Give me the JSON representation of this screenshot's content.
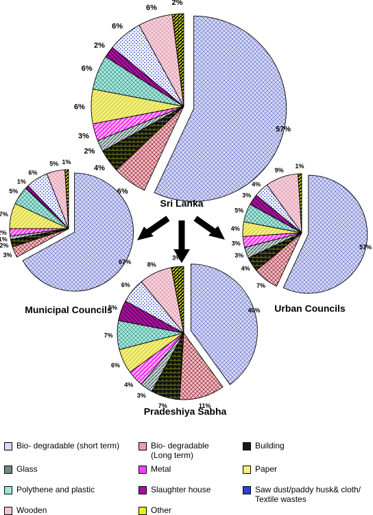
{
  "chart_data": [
    {
      "type": "pie",
      "title": "Sri Lanka",
      "categories": [
        "Bio- degradable (short term)",
        "Bio- degradable (Long term)",
        "Building",
        "Glass",
        "Metal",
        "Paper",
        "Polythene and plastic",
        "Slaughter house",
        "Saw dust/paddy husk& cloth/ Textile wastes",
        "Wooden",
        "Other"
      ],
      "values": [
        57,
        6,
        4,
        2,
        3,
        6,
        6,
        2,
        6,
        6,
        2
      ],
      "labels": [
        "57%",
        "6%",
        "4%",
        "2%",
        "3%",
        "6%",
        "6%",
        "2%",
        "6%",
        "6%",
        "2%"
      ]
    },
    {
      "type": "pie",
      "title": "Municipal Councils",
      "categories": [
        "Bio- degradable (short term)",
        "Bio- degradable (Long term)",
        "Building",
        "Glass",
        "Metal",
        "Paper",
        "Polythene and plastic",
        "Slaughter house",
        "Saw dust/paddy husk& cloth/ Textile wastes",
        "Wooden",
        "Other"
      ],
      "values": [
        67,
        3,
        2,
        1,
        2,
        7,
        5,
        1,
        6,
        5,
        1
      ],
      "labels": [
        "67%",
        "3%",
        "2%",
        "1%",
        "2%",
        "7%",
        "5%",
        "1%",
        "6%",
        "5%",
        "1%"
      ]
    },
    {
      "type": "pie",
      "title": "Urban Councils",
      "categories": [
        "Bio- degradable (short term)",
        "Bio- degradable (Long term)",
        "Building",
        "Glass",
        "Metal",
        "Paper",
        "Polythene and plastic",
        "Slaughter house",
        "Saw dust/paddy husk& cloth/ Textile wastes",
        "Wooden",
        "Other"
      ],
      "values": [
        57,
        7,
        4,
        3,
        3,
        4,
        5,
        3,
        4,
        9,
        1
      ],
      "labels": [
        "57%",
        "7%",
        "4%",
        "3%",
        "3%",
        "4%",
        "5%",
        "3%",
        "4%",
        "9%",
        "1%"
      ]
    },
    {
      "type": "pie",
      "title": "Pradeshiya Sabha",
      "categories": [
        "Bio- degradable (short term)",
        "Bio- degradable (Long term)",
        "Building",
        "Glass",
        "Metal",
        "Paper",
        "Polythene and plastic",
        "Slaughter house",
        "Saw dust/paddy husk& cloth/ Textile wastes",
        "Wooden",
        "Other"
      ],
      "values": [
        40,
        11,
        7,
        3,
        4,
        6,
        7,
        5,
        6,
        8,
        3
      ],
      "labels": [
        "40%",
        "11%",
        "7%",
        "3%",
        "4%",
        "6%",
        "7%",
        "5%",
        "6%",
        "8%",
        "3%"
      ]
    }
  ],
  "legend": {
    "items": [
      {
        "label": "Bio- degradable (short term)",
        "key": "bio_short"
      },
      {
        "label": "Bio- degradable\n(Long term)",
        "key": "bio_long"
      },
      {
        "label": "Building",
        "key": "building"
      },
      {
        "label": "Glass",
        "key": "glass"
      },
      {
        "label": "Metal",
        "key": "metal"
      },
      {
        "label": "Paper",
        "key": "paper"
      },
      {
        "label": "Polythene and plastic",
        "key": "polythene"
      },
      {
        "label": "Slaughter house",
        "key": "slaughter"
      },
      {
        "label": "Saw dust/paddy husk& cloth/\nTextile wastes",
        "key": "sawdust"
      },
      {
        "label": "Wooden",
        "key": "wooden"
      },
      {
        "label": "Other",
        "key": "other"
      }
    ]
  },
  "colors": {
    "bio_short": "#d6daf5",
    "bio_long": "#e8a0a8",
    "building": "#1a1a1a",
    "glass": "#6e8a86",
    "metal": "#ff3df5",
    "paper": "#f4f07a",
    "polythene": "#9fe3d8",
    "slaughter": "#a3109a",
    "sawdust": "#2f3fd6",
    "wooden": "#f3c3cf",
    "other": "#e6f000"
  }
}
